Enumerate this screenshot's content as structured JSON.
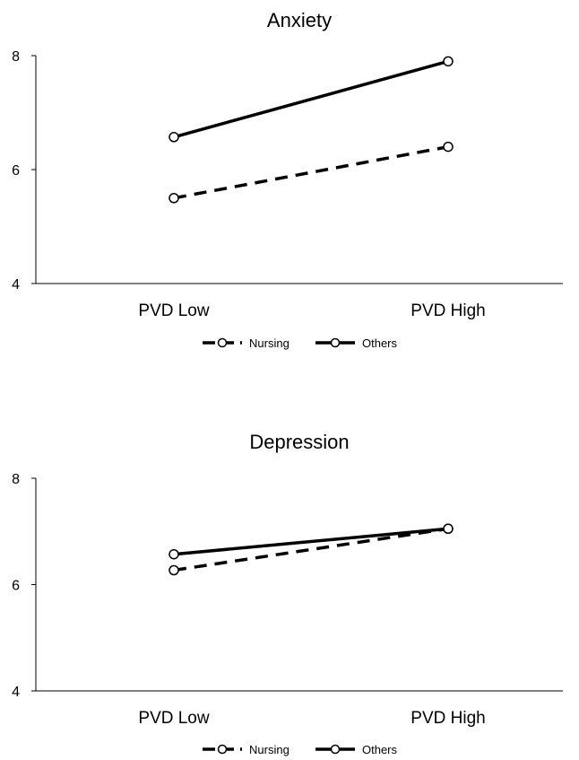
{
  "chart_data": [
    {
      "type": "line",
      "title": "Anxiety",
      "categories": [
        "PVD Low",
        "PVD High"
      ],
      "ylim": [
        4,
        8
      ],
      "yticks": [
        4,
        6,
        8
      ],
      "series": [
        {
          "name": "Nursing",
          "values": [
            5.5,
            6.4
          ],
          "style": "dashed",
          "color": "#000000"
        },
        {
          "name": "Others",
          "values": [
            6.57,
            7.9
          ],
          "style": "solid",
          "color": "#000000"
        }
      ],
      "legend": "bottom",
      "grid": false
    },
    {
      "type": "line",
      "title": "Depression",
      "categories": [
        "PVD Low",
        "PVD High"
      ],
      "ylim": [
        4,
        8
      ],
      "yticks": [
        4,
        6,
        8
      ],
      "series": [
        {
          "name": "Nursing",
          "values": [
            6.27,
            7.05
          ],
          "style": "dashed",
          "color": "#000000"
        },
        {
          "name": "Others",
          "values": [
            6.57,
            7.05
          ],
          "style": "solid",
          "color": "#000000"
        }
      ],
      "legend": "bottom",
      "grid": false
    }
  ]
}
